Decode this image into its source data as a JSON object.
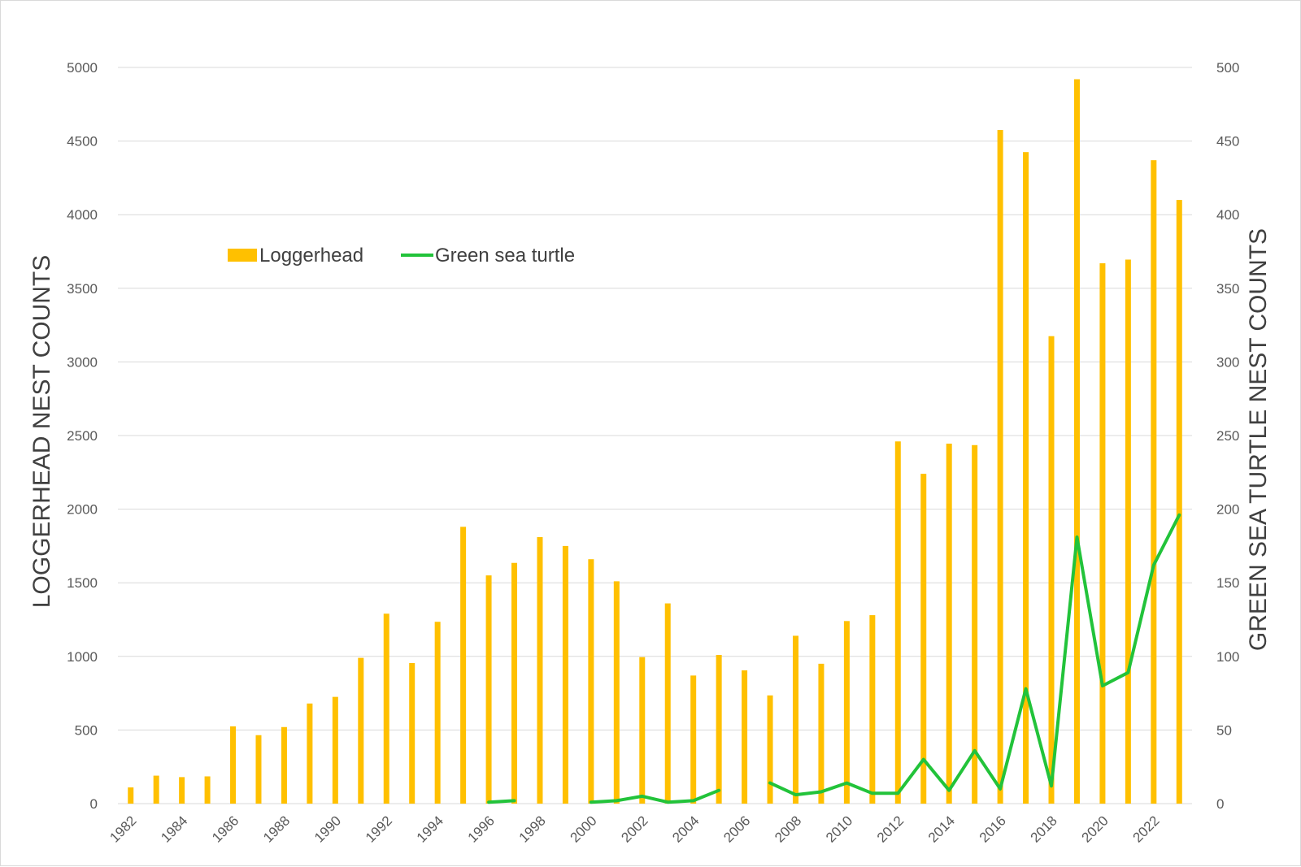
{
  "chart_data": {
    "type": "bar",
    "title": "",
    "ylabel": "LOGGERHEAD NEST COUNTS",
    "y2label": "GREEN SEA TURTLE NEST COUNTS",
    "ylim": [
      0,
      5000
    ],
    "y2lim": [
      0,
      500
    ],
    "yticks": [
      "0",
      "500",
      "1000",
      "1500",
      "2000",
      "2500",
      "3000",
      "3500",
      "4000",
      "4500",
      "5000"
    ],
    "y2ticks": [
      "0",
      "50",
      "100",
      "150",
      "200",
      "250",
      "300",
      "350",
      "400",
      "450",
      "500"
    ],
    "xticklabels": [
      "1982",
      "1984",
      "1986",
      "1988",
      "1990",
      "1992",
      "1994",
      "1996",
      "1998",
      "2000",
      "2002",
      "2004",
      "2006",
      "2008",
      "2010",
      "2012",
      "2014",
      "2016",
      "2018",
      "2020",
      "2022"
    ],
    "grid": true,
    "legend_position": "upper-left",
    "categories": [
      1982,
      1983,
      1984,
      1985,
      1986,
      1987,
      1988,
      1989,
      1990,
      1991,
      1992,
      1993,
      1994,
      1995,
      1996,
      1997,
      1998,
      1999,
      2000,
      2001,
      2002,
      2003,
      2004,
      2005,
      2006,
      2007,
      2008,
      2009,
      2010,
      2011,
      2012,
      2013,
      2014,
      2015,
      2016,
      2017,
      2018,
      2019,
      2020,
      2021,
      2022,
      2023
    ],
    "series": [
      {
        "name": "Loggerhead",
        "type": "bar",
        "axis": "left",
        "color": "#FFC000",
        "values": [
          110,
          190,
          180,
          185,
          525,
          465,
          520,
          680,
          725,
          990,
          1290,
          955,
          1235,
          1880,
          1550,
          1635,
          1810,
          1750,
          1660,
          1510,
          995,
          1360,
          870,
          1010,
          905,
          735,
          1140,
          950,
          1240,
          1280,
          2460,
          2240,
          2445,
          2435,
          4575,
          4425,
          3175,
          4920,
          3670,
          3695,
          4370,
          4100
        ]
      },
      {
        "name": "Green sea turtle",
        "type": "line",
        "axis": "right",
        "color": "#22C33A",
        "values": [
          null,
          null,
          null,
          null,
          null,
          null,
          null,
          null,
          null,
          null,
          null,
          null,
          null,
          null,
          1,
          2,
          null,
          null,
          1,
          2,
          5,
          1,
          2,
          9,
          null,
          14,
          6,
          8,
          14,
          7,
          7,
          30,
          9,
          36,
          10,
          78,
          12,
          181,
          80,
          89,
          162,
          196
        ]
      }
    ]
  }
}
